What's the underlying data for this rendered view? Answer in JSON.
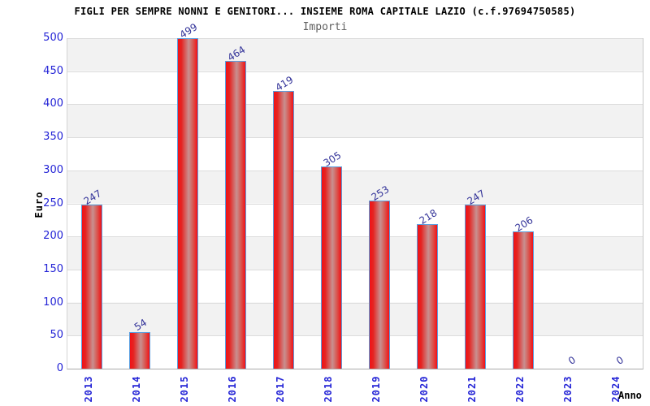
{
  "chart_data": {
    "type": "bar",
    "title": "FIGLI PER SEMPRE NONNI E GENITORI... INSIEME ROMA CAPITALE LAZIO (c.f.97694750585)",
    "subtitle": "Importi",
    "xlabel": "Anno",
    "ylabel": "Euro",
    "categories": [
      "2013",
      "2014",
      "2015",
      "2016",
      "2017",
      "2018",
      "2019",
      "2020",
      "2021",
      "2022",
      "2023",
      "2024"
    ],
    "values": [
      247,
      54,
      499,
      464,
      419,
      305,
      253,
      218,
      247,
      206,
      0,
      0
    ],
    "ylim": [
      0,
      500
    ],
    "ytick_step": 50,
    "grid": "horizontal-bands",
    "legend": "none",
    "colors": {
      "bar_fill": "#f21016",
      "bar_highlight": "#c89090",
      "bar_border": "#5a9fe0",
      "axis_tick_text": "#2424d6",
      "value_label_text": "#333399",
      "band_alt": "#f2f2f2",
      "gridline": "#dcdcdc",
      "title_text": "#000000",
      "subtitle_text": "#606060"
    }
  }
}
